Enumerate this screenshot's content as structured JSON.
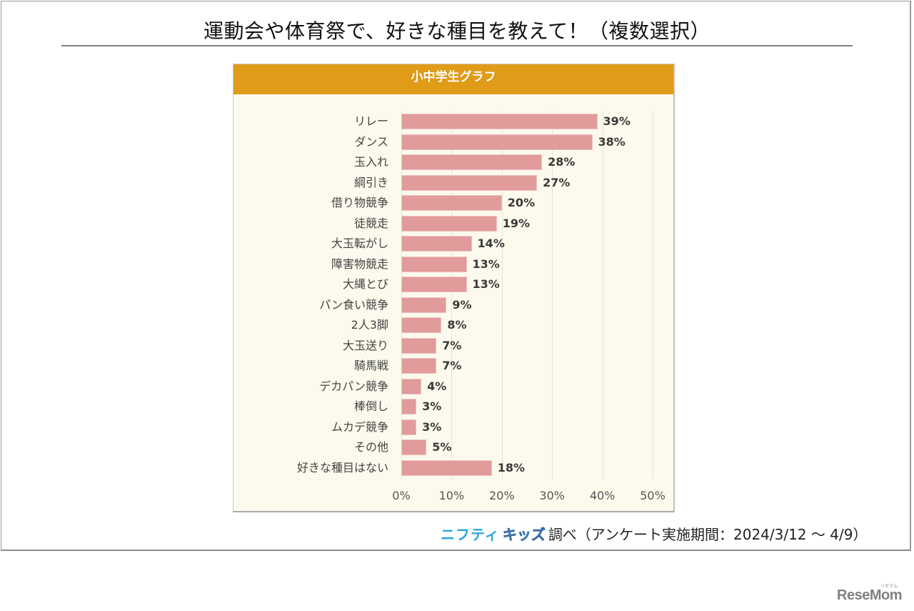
{
  "page": {
    "title": "運動会や体育祭で、好きな種目を教えて！（複数選択）",
    "chart_header": "小中学生グラフ",
    "source": {
      "brand_part1": "ニフティ",
      "brand_part2": "キッズ",
      "text": "調べ（アンケート実施期間：2024/3/12 ～ 4/9）"
    },
    "watermark": "ReseMom",
    "watermark_ruby": "リセマム"
  },
  "colors": {
    "header_bg": "#e09b18",
    "bar": "#e19b9b",
    "plot_bg": "#fcfaec",
    "brand_blue": "#27a7e0"
  },
  "chart_data": {
    "type": "bar",
    "orientation": "horizontal",
    "title": "小中学生グラフ",
    "categories": [
      "リレー",
      "ダンス",
      "玉入れ",
      "綱引き",
      "借り物競争",
      "徒競走",
      "大玉転がし",
      "障害物競走",
      "大縄とび",
      "パン食い競争",
      "2人3脚",
      "大玉送り",
      "騎馬戦",
      "デカパン競争",
      "棒倒し",
      "ムカデ競争",
      "その他",
      "好きな種目はない"
    ],
    "values": [
      39,
      38,
      28,
      27,
      20,
      19,
      14,
      13,
      13,
      9,
      8,
      7,
      7,
      4,
      3,
      3,
      5,
      18
    ],
    "value_labels": [
      "39%",
      "38%",
      "28%",
      "27%",
      "20%",
      "19%",
      "14%",
      "13%",
      "13%",
      "9%",
      "8%",
      "7%",
      "7%",
      "4%",
      "3%",
      "3%",
      "5%",
      "18%"
    ],
    "xlabel": "",
    "ylabel": "",
    "xlim": [
      0,
      50
    ],
    "x_ticks": [
      "0%",
      "10%",
      "20%",
      "30%",
      "40%",
      "50%"
    ],
    "grid": true,
    "legend": null
  }
}
